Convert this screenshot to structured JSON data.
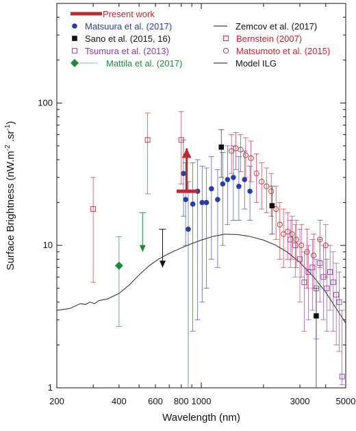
{
  "chart_data": {
    "type": "scatter",
    "xlabel": "Wavelength (nm)",
    "ylabel_main": "Surface Brightness (nW.m",
    "ylabel_sup1": "-2",
    "ylabel_mid": " .sr",
    "ylabel_sup2": "-1",
    "ylabel_end": ")",
    "x_scale": "log",
    "y_scale": "log",
    "xlim": [
      200,
      5000
    ],
    "ylim": [
      1,
      500
    ],
    "x_ticks": [
      {
        "value": 200,
        "label": "200"
      },
      {
        "value": 400,
        "label": "400"
      },
      {
        "value": 600,
        "label": "600"
      },
      {
        "value": 800,
        "label": "800"
      },
      {
        "value": 1000,
        "label": "1000"
      },
      {
        "value": 3000,
        "label": "3000"
      },
      {
        "value": 5000,
        "label": "5000"
      }
    ],
    "y_ticks": [
      {
        "value": 1,
        "label": "1"
      },
      {
        "value": 10,
        "label": "10"
      },
      {
        "value": 100,
        "label": "100"
      }
    ],
    "legend": [
      {
        "label": "Present work",
        "color": "#c0282d",
        "marker": "thickbar"
      },
      {
        "label": "Matsuura et al. (2017)",
        "color": "#2a3f9d",
        "marker": "circle"
      },
      {
        "label": "Sano et al. (2015, 16)",
        "color": "#111111",
        "marker": "square"
      },
      {
        "label": "Tsumura et al. (2013)",
        "color": "#8b3aa8",
        "marker": "opensquare"
      },
      {
        "label": "Mattila et al. (2017)",
        "color": "#1f8a3b",
        "marker": "diamond"
      },
      {
        "label": "Zemcov et al. (2017)",
        "color": "#111111",
        "marker": "line"
      },
      {
        "label": "Bernstein (2007)",
        "color": "#c0282d",
        "marker": "opensquare"
      },
      {
        "label": "Matsumoto et al. (2015)",
        "color": "#c0282d",
        "marker": "opencircle"
      },
      {
        "label": "Model ILG",
        "color": "#111111",
        "marker": "line"
      }
    ],
    "series": [
      {
        "name": "Present work",
        "color": "#c0282d",
        "points": [
          {
            "x": 850,
            "y": 24,
            "xlo": 760,
            "xhi": 960,
            "lower_limit": true,
            "arrow_to": 48
          }
        ]
      },
      {
        "name": "Matsuura et al. (2017)",
        "color": "#2a3f9d",
        "points": [
          {
            "x": 820,
            "y": 32,
            "lo": 16,
            "hi": 55
          },
          {
            "x": 840,
            "y": 21,
            "lo": 10,
            "hi": 38
          },
          {
            "x": 865,
            "y": 13,
            "lo": 1,
            "hi": 28
          },
          {
            "x": 910,
            "y": 19.5,
            "lo": 2.5,
            "hi": 38
          },
          {
            "x": 960,
            "y": 24,
            "lo": 3,
            "hi": 40
          },
          {
            "x": 1010,
            "y": 20,
            "lo": 4,
            "hi": 36
          },
          {
            "x": 1060,
            "y": 20,
            "lo": 5,
            "hi": 35
          },
          {
            "x": 1120,
            "y": 25,
            "lo": 8,
            "hi": 42
          },
          {
            "x": 1200,
            "y": 21,
            "lo": 7,
            "hi": 34
          },
          {
            "x": 1270,
            "y": 27,
            "lo": 10,
            "hi": 45
          },
          {
            "x": 1340,
            "y": 29,
            "lo": 14,
            "hi": 50
          },
          {
            "x": 1430,
            "y": 30,
            "lo": 15,
            "hi": 50
          },
          {
            "x": 1520,
            "y": 26,
            "lo": 15,
            "hi": 42
          },
          {
            "x": 1620,
            "y": 29,
            "lo": 18,
            "hi": 46
          },
          {
            "x": 1720,
            "y": 24,
            "lo": 15,
            "hi": 36
          }
        ]
      },
      {
        "name": "Sano et al. (2015, 16)",
        "color": "#111111",
        "points": [
          {
            "x": 1250,
            "y": 49,
            "lo": 30,
            "hi": 65
          },
          {
            "x": 2200,
            "y": 19,
            "lo": 12,
            "hi": 26
          },
          {
            "x": 3600,
            "y": 3.2,
            "lo": 1,
            "hi": 5
          }
        ]
      },
      {
        "name": "Tsumura et al. (2013)",
        "color": "#8b3aa8",
        "points": [
          {
            "x": 2700,
            "y": 11,
            "lo": 7,
            "hi": 15
          },
          {
            "x": 2850,
            "y": 10,
            "lo": 6,
            "hi": 14
          },
          {
            "x": 3000,
            "y": 8,
            "lo": 4,
            "hi": 13
          },
          {
            "x": 3150,
            "y": 5.5,
            "lo": 2.5,
            "hi": 9
          },
          {
            "x": 3300,
            "y": 6.5,
            "lo": 3,
            "hi": 10
          },
          {
            "x": 3450,
            "y": 7,
            "lo": 3.5,
            "hi": 11
          },
          {
            "x": 3600,
            "y": 5,
            "lo": 2.2,
            "hi": 8
          },
          {
            "x": 3750,
            "y": 7.5,
            "lo": 4,
            "hi": 11
          },
          {
            "x": 3900,
            "y": 6,
            "lo": 3,
            "hi": 10
          },
          {
            "x": 4050,
            "y": 5,
            "lo": 2.5,
            "hi": 8
          },
          {
            "x": 4200,
            "y": 6.5,
            "lo": 3.5,
            "hi": 10
          },
          {
            "x": 4350,
            "y": 5.5,
            "lo": 2.5,
            "hi": 9
          },
          {
            "x": 4500,
            "y": 4.5,
            "lo": 2,
            "hi": 7.5
          },
          {
            "x": 4650,
            "y": 4,
            "lo": 1.8,
            "hi": 6.5
          },
          {
            "x": 4800,
            "y": 1.2,
            "lo": 1.05,
            "hi": 3.5
          }
        ]
      },
      {
        "name": "Mattila et al. (2017)",
        "color": "#1f8a3b",
        "points": [
          {
            "x": 400,
            "y": 7.2,
            "lo": 2.7,
            "hi": 11.5
          },
          {
            "x": 520,
            "y": 17,
            "upper_limit": true,
            "arrow_to": 9
          }
        ]
      },
      {
        "name": "Zemcov et al. (2017)",
        "color": "#111111",
        "points": [
          {
            "x": 650,
            "y": 13,
            "upper_limit": true,
            "arrow_to": 7
          }
        ]
      },
      {
        "name": "Bernstein (2007)",
        "color": "#c0282d",
        "points": [
          {
            "x": 300,
            "y": 18,
            "lo": 5.5,
            "hi": 30
          },
          {
            "x": 550,
            "y": 55,
            "lo": 23,
            "hi": 85
          },
          {
            "x": 800,
            "y": 55,
            "lo": 27,
            "hi": 87
          }
        ]
      },
      {
        "name": "Matsumoto et al. (2015)",
        "color": "#c0282d",
        "points": [
          {
            "x": 1400,
            "y": 46,
            "lo": 32,
            "hi": 60
          },
          {
            "x": 1470,
            "y": 48,
            "lo": 34,
            "hi": 62
          },
          {
            "x": 1550,
            "y": 47,
            "lo": 33,
            "hi": 60
          },
          {
            "x": 1640,
            "y": 43,
            "lo": 30,
            "hi": 57
          },
          {
            "x": 1740,
            "y": 41,
            "lo": 28,
            "hi": 54
          },
          {
            "x": 1850,
            "y": 32,
            "lo": 20,
            "hi": 44
          },
          {
            "x": 1960,
            "y": 28,
            "lo": 18,
            "hi": 38
          },
          {
            "x": 2070,
            "y": 26,
            "lo": 17,
            "hi": 35
          },
          {
            "x": 2180,
            "y": 24,
            "lo": 16,
            "hi": 32
          },
          {
            "x": 2300,
            "y": 18,
            "lo": 11,
            "hi": 26
          },
          {
            "x": 2400,
            "y": 14,
            "lo": 8,
            "hi": 20
          },
          {
            "x": 2500,
            "y": 12,
            "lo": 7,
            "hi": 18
          },
          {
            "x": 2620,
            "y": 12.5,
            "lo": 8,
            "hi": 17
          },
          {
            "x": 2750,
            "y": 12,
            "lo": 8,
            "hi": 16
          },
          {
            "x": 2880,
            "y": 11,
            "lo": 7,
            "hi": 15
          },
          {
            "x": 3050,
            "y": 10,
            "lo": 6,
            "hi": 14
          },
          {
            "x": 3250,
            "y": 9,
            "lo": 5,
            "hi": 13
          },
          {
            "x": 3500,
            "y": 8.5,
            "lo": 5,
            "hi": 12
          },
          {
            "x": 3750,
            "y": 11,
            "lo": 7,
            "hi": 15
          },
          {
            "x": 4000,
            "y": 10,
            "lo": 6,
            "hi": 14
          }
        ]
      },
      {
        "name": "Model ILG",
        "color": "#222222",
        "line": [
          {
            "x": 200,
            "y": 3.5
          },
          {
            "x": 230,
            "y": 3.6
          },
          {
            "x": 260,
            "y": 3.9
          },
          {
            "x": 275,
            "y": 3.85
          },
          {
            "x": 290,
            "y": 4.0
          },
          {
            "x": 305,
            "y": 3.9
          },
          {
            "x": 320,
            "y": 4.1
          },
          {
            "x": 350,
            "y": 4.2
          },
          {
            "x": 400,
            "y": 4.6
          },
          {
            "x": 450,
            "y": 5.3
          },
          {
            "x": 500,
            "y": 6.2
          },
          {
            "x": 560,
            "y": 7.2
          },
          {
            "x": 620,
            "y": 8.0
          },
          {
            "x": 700,
            "y": 8.8
          },
          {
            "x": 800,
            "y": 9.6
          },
          {
            "x": 900,
            "y": 10.3
          },
          {
            "x": 1000,
            "y": 10.9
          },
          {
            "x": 1150,
            "y": 11.6
          },
          {
            "x": 1300,
            "y": 12.0
          },
          {
            "x": 1500,
            "y": 11.9
          },
          {
            "x": 1700,
            "y": 11.6
          },
          {
            "x": 2000,
            "y": 10.9
          },
          {
            "x": 2300,
            "y": 10.0
          },
          {
            "x": 2600,
            "y": 9.0
          },
          {
            "x": 3000,
            "y": 7.6
          },
          {
            "x": 3500,
            "y": 6.0
          },
          {
            "x": 4000,
            "y": 4.7
          },
          {
            "x": 4500,
            "y": 3.6
          },
          {
            "x": 5000,
            "y": 2.85
          }
        ]
      }
    ]
  }
}
